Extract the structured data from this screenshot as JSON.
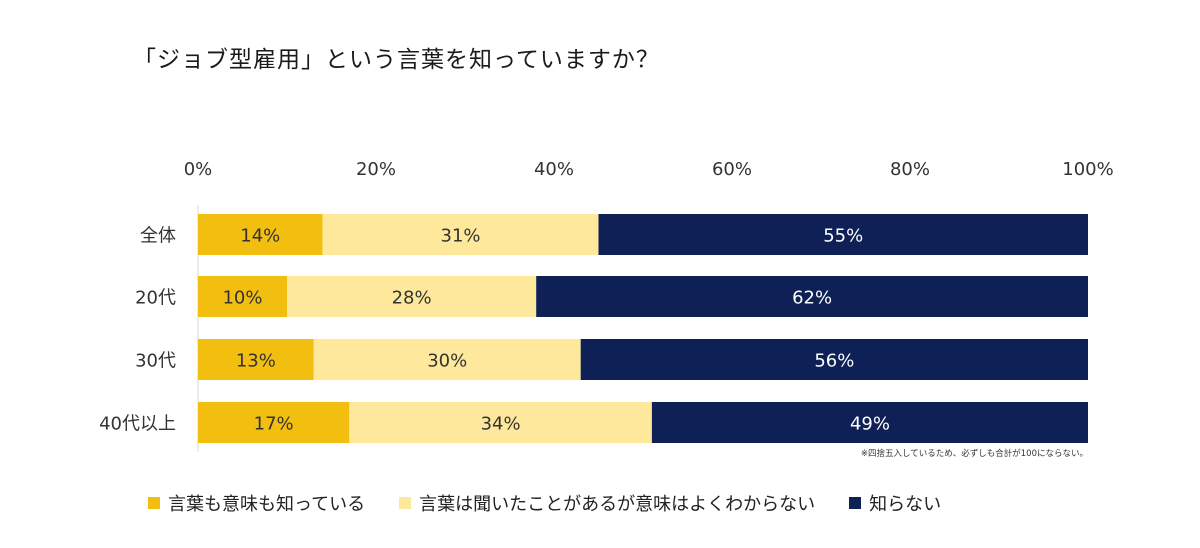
{
  "chart_data": {
    "type": "bar",
    "orientation": "horizontal",
    "stacked": true,
    "title": "「ジョブ型雇用」という言葉を知っていますか？",
    "categories": [
      "全体",
      "20代",
      "30代",
      "40代以上"
    ],
    "series": [
      {
        "name": "言葉も意味も知っている",
        "color": "#f2be0f",
        "text_color": "#333333",
        "values": [
          14,
          10,
          13,
          17
        ]
      },
      {
        "name": "言葉は聞いたことがあるが意味はよくわからない",
        "color": "#fde89b",
        "text_color": "#333333",
        "values": [
          31,
          28,
          30,
          34
        ]
      },
      {
        "name": "知らない",
        "color": "#0f2057",
        "text_color": "#ffffff",
        "values": [
          55,
          62,
          56,
          49
        ]
      }
    ],
    "xlim": [
      0,
      100
    ],
    "xticks": [
      0,
      20,
      40,
      60,
      80,
      100
    ],
    "tick_suffix": "%",
    "axis_position": "top",
    "legend_position": "bottom",
    "grid": false,
    "footnote": "※四捨五入しているため、必ずしも合計が100にならない。"
  }
}
